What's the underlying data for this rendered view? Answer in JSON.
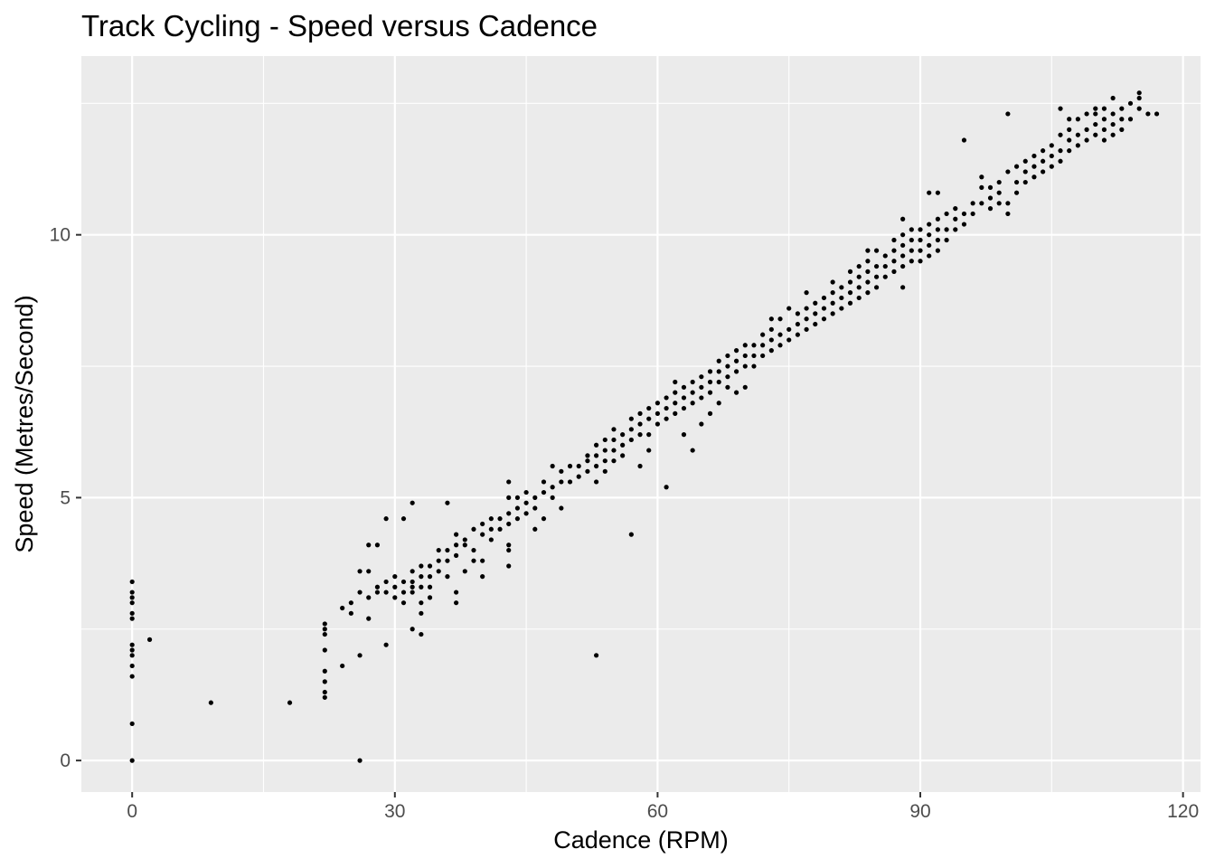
{
  "chart_data": {
    "type": "scatter",
    "title": "Track Cycling - Speed versus Cadence",
    "xlabel": "Cadence (RPM)",
    "ylabel": "Speed (Metres/Second)",
    "xlim": [
      -5.8,
      122
    ],
    "ylim": [
      -0.6,
      13.4
    ],
    "x_ticks": [
      0,
      30,
      60,
      90,
      120
    ],
    "x_tick_labels": [
      "0",
      "30",
      "60",
      "90",
      "120"
    ],
    "y_ticks": [
      0,
      5,
      10
    ],
    "y_tick_labels": [
      "0",
      "5",
      "10"
    ],
    "x_minor_ticks": [
      15,
      45,
      75,
      105
    ],
    "y_minor_ticks": [
      2.5,
      7.5,
      12.5
    ],
    "grid": true,
    "legend": "none",
    "colors": {
      "panel": "#ebebeb",
      "grid": "#ffffff",
      "point": "#000000",
      "tick": "#333333"
    },
    "points": [
      [
        0,
        0
      ],
      [
        0,
        0.7
      ],
      [
        0,
        1.6
      ],
      [
        0,
        1.8
      ],
      [
        0,
        2.0
      ],
      [
        0,
        2.1
      ],
      [
        0,
        2.2
      ],
      [
        0,
        2.7
      ],
      [
        0,
        2.8
      ],
      [
        0,
        3.0
      ],
      [
        0,
        3.1
      ],
      [
        0,
        3.2
      ],
      [
        0,
        3.4
      ],
      [
        2,
        2.3
      ],
      [
        9,
        1.1
      ],
      [
        18,
        1.1
      ],
      [
        22,
        1.2
      ],
      [
        22,
        1.3
      ],
      [
        22,
        1.5
      ],
      [
        22,
        1.7
      ],
      [
        22,
        2.1
      ],
      [
        22,
        2.4
      ],
      [
        22,
        2.5
      ],
      [
        22,
        2.6
      ],
      [
        24,
        1.8
      ],
      [
        24,
        2.9
      ],
      [
        25,
        2.8
      ],
      [
        25,
        3.0
      ],
      [
        26,
        0
      ],
      [
        26,
        2.0
      ],
      [
        26,
        3.2
      ],
      [
        26,
        3.6
      ],
      [
        27,
        2.7
      ],
      [
        27,
        3.1
      ],
      [
        27,
        3.6
      ],
      [
        27,
        4.1
      ],
      [
        28,
        4.1
      ],
      [
        28,
        3.2
      ],
      [
        28,
        3.3
      ],
      [
        29,
        2.2
      ],
      [
        29,
        3.2
      ],
      [
        29,
        3.4
      ],
      [
        29,
        4.6
      ],
      [
        30,
        3.1
      ],
      [
        30,
        3.3
      ],
      [
        30,
        3.5
      ],
      [
        31,
        3.0
      ],
      [
        31,
        3.2
      ],
      [
        31,
        3.4
      ],
      [
        31,
        4.6
      ],
      [
        32,
        2.5
      ],
      [
        32,
        3.2
      ],
      [
        32,
        3.3
      ],
      [
        32,
        3.4
      ],
      [
        32,
        3.6
      ],
      [
        32,
        4.9
      ],
      [
        33,
        2.4
      ],
      [
        33,
        2.8
      ],
      [
        33,
        3.0
      ],
      [
        33,
        3.3
      ],
      [
        33,
        3.5
      ],
      [
        33,
        3.7
      ],
      [
        34,
        3.1
      ],
      [
        34,
        3.3
      ],
      [
        34,
        3.5
      ],
      [
        34,
        3.7
      ],
      [
        35,
        3.6
      ],
      [
        35,
        3.8
      ],
      [
        35,
        4.0
      ],
      [
        36,
        3.5
      ],
      [
        36,
        3.8
      ],
      [
        36,
        4.0
      ],
      [
        36,
        4.9
      ],
      [
        37,
        3.0
      ],
      [
        37,
        3.2
      ],
      [
        37,
        3.9
      ],
      [
        37,
        4.1
      ],
      [
        37,
        4.3
      ],
      [
        38,
        3.6
      ],
      [
        38,
        4.1
      ],
      [
        38,
        4.2
      ],
      [
        39,
        3.8
      ],
      [
        39,
        4.0
      ],
      [
        39,
        4.4
      ],
      [
        40,
        3.5
      ],
      [
        40,
        3.8
      ],
      [
        40,
        4.3
      ],
      [
        40,
        4.5
      ],
      [
        41,
        4.2
      ],
      [
        41,
        4.4
      ],
      [
        41,
        4.6
      ],
      [
        42,
        4.4
      ],
      [
        42,
        4.6
      ],
      [
        43,
        3.7
      ],
      [
        43,
        4.0
      ],
      [
        43,
        4.1
      ],
      [
        43,
        4.5
      ],
      [
        43,
        4.7
      ],
      [
        43,
        5.0
      ],
      [
        43,
        5.3
      ],
      [
        44,
        4.6
      ],
      [
        44,
        4.8
      ],
      [
        44,
        5.0
      ],
      [
        45,
        4.7
      ],
      [
        45,
        4.9
      ],
      [
        45,
        5.1
      ],
      [
        46,
        4.4
      ],
      [
        46,
        4.8
      ],
      [
        46,
        5.0
      ],
      [
        47,
        4.6
      ],
      [
        47,
        5.1
      ],
      [
        47,
        5.3
      ],
      [
        48,
        5.0
      ],
      [
        48,
        5.2
      ],
      [
        48,
        5.6
      ],
      [
        49,
        4.8
      ],
      [
        49,
        5.3
      ],
      [
        49,
        5.5
      ],
      [
        50,
        5.3
      ],
      [
        50,
        5.6
      ],
      [
        51,
        5.4
      ],
      [
        51,
        5.6
      ],
      [
        52,
        5.5
      ],
      [
        52,
        5.7
      ],
      [
        52,
        5.8
      ],
      [
        53,
        2.0
      ],
      [
        53,
        5.3
      ],
      [
        53,
        5.6
      ],
      [
        53,
        5.8
      ],
      [
        53,
        6.0
      ],
      [
        54,
        5.5
      ],
      [
        54,
        5.7
      ],
      [
        54,
        5.9
      ],
      [
        54,
        6.1
      ],
      [
        55,
        5.7
      ],
      [
        55,
        5.9
      ],
      [
        55,
        6.1
      ],
      [
        55,
        6.3
      ],
      [
        56,
        5.8
      ],
      [
        56,
        6.0
      ],
      [
        56,
        6.2
      ],
      [
        57,
        4.3
      ],
      [
        57,
        6.1
      ],
      [
        57,
        6.3
      ],
      [
        57,
        6.5
      ],
      [
        58,
        5.6
      ],
      [
        58,
        6.2
      ],
      [
        58,
        6.4
      ],
      [
        58,
        6.6
      ],
      [
        59,
        5.9
      ],
      [
        59,
        6.2
      ],
      [
        59,
        6.5
      ],
      [
        59,
        6.7
      ],
      [
        60,
        6.4
      ],
      [
        60,
        6.6
      ],
      [
        60,
        6.8
      ],
      [
        61,
        5.2
      ],
      [
        61,
        6.5
      ],
      [
        61,
        6.7
      ],
      [
        61,
        6.9
      ],
      [
        62,
        6.6
      ],
      [
        62,
        6.8
      ],
      [
        62,
        7.0
      ],
      [
        62,
        7.2
      ],
      [
        63,
        6.2
      ],
      [
        63,
        6.7
      ],
      [
        63,
        6.9
      ],
      [
        63,
        7.1
      ],
      [
        64,
        5.9
      ],
      [
        64,
        6.8
      ],
      [
        64,
        7.0
      ],
      [
        64,
        7.2
      ],
      [
        65,
        6.4
      ],
      [
        65,
        6.9
      ],
      [
        65,
        7.1
      ],
      [
        65,
        7.3
      ],
      [
        66,
        6.6
      ],
      [
        66,
        7.0
      ],
      [
        66,
        7.2
      ],
      [
        66,
        7.4
      ],
      [
        67,
        6.8
      ],
      [
        67,
        7.2
      ],
      [
        67,
        7.4
      ],
      [
        67,
        7.6
      ],
      [
        68,
        7.1
      ],
      [
        68,
        7.3
      ],
      [
        68,
        7.5
      ],
      [
        68,
        7.7
      ],
      [
        69,
        7.0
      ],
      [
        69,
        7.4
      ],
      [
        69,
        7.6
      ],
      [
        69,
        7.8
      ],
      [
        70,
        7.1
      ],
      [
        70,
        7.5
      ],
      [
        70,
        7.7
      ],
      [
        70,
        7.9
      ],
      [
        71,
        7.5
      ],
      [
        71,
        7.7
      ],
      [
        71,
        7.9
      ],
      [
        72,
        7.7
      ],
      [
        72,
        7.9
      ],
      [
        72,
        8.1
      ],
      [
        73,
        7.8
      ],
      [
        73,
        8.0
      ],
      [
        73,
        8.2
      ],
      [
        73,
        8.4
      ],
      [
        74,
        7.9
      ],
      [
        74,
        8.1
      ],
      [
        74,
        8.4
      ],
      [
        75,
        8.0
      ],
      [
        75,
        8.2
      ],
      [
        75,
        8.6
      ],
      [
        76,
        8.1
      ],
      [
        76,
        8.3
      ],
      [
        76,
        8.5
      ],
      [
        77,
        8.2
      ],
      [
        77,
        8.4
      ],
      [
        77,
        8.6
      ],
      [
        77,
        8.9
      ],
      [
        78,
        8.3
      ],
      [
        78,
        8.5
      ],
      [
        78,
        8.7
      ],
      [
        79,
        8.4
      ],
      [
        79,
        8.6
      ],
      [
        79,
        8.8
      ],
      [
        80,
        8.5
      ],
      [
        80,
        8.7
      ],
      [
        80,
        8.9
      ],
      [
        80,
        9.1
      ],
      [
        81,
        8.6
      ],
      [
        81,
        8.8
      ],
      [
        81,
        9.0
      ],
      [
        82,
        8.7
      ],
      [
        82,
        8.9
      ],
      [
        82,
        9.1
      ],
      [
        82,
        9.3
      ],
      [
        83,
        8.8
      ],
      [
        83,
        9.0
      ],
      [
        83,
        9.2
      ],
      [
        83,
        9.4
      ],
      [
        84,
        8.9
      ],
      [
        84,
        9.1
      ],
      [
        84,
        9.3
      ],
      [
        84,
        9.5
      ],
      [
        84,
        9.7
      ],
      [
        85,
        9.0
      ],
      [
        85,
        9.2
      ],
      [
        85,
        9.4
      ],
      [
        85,
        9.7
      ],
      [
        86,
        9.2
      ],
      [
        86,
        9.4
      ],
      [
        86,
        9.6
      ],
      [
        87,
        9.3
      ],
      [
        87,
        9.5
      ],
      [
        87,
        9.7
      ],
      [
        87,
        9.9
      ],
      [
        88,
        9.0
      ],
      [
        88,
        9.4
      ],
      [
        88,
        9.6
      ],
      [
        88,
        9.8
      ],
      [
        88,
        10.0
      ],
      [
        88,
        10.3
      ],
      [
        89,
        9.5
      ],
      [
        89,
        9.7
      ],
      [
        89,
        9.9
      ],
      [
        89,
        10.1
      ],
      [
        90,
        9.5
      ],
      [
        90,
        9.7
      ],
      [
        90,
        9.9
      ],
      [
        90,
        10.1
      ],
      [
        91,
        9.6
      ],
      [
        91,
        9.8
      ],
      [
        91,
        10.0
      ],
      [
        91,
        10.2
      ],
      [
        91,
        10.8
      ],
      [
        92,
        9.7
      ],
      [
        92,
        9.9
      ],
      [
        92,
        10.1
      ],
      [
        92,
        10.3
      ],
      [
        92,
        10.8
      ],
      [
        93,
        9.9
      ],
      [
        93,
        10.1
      ],
      [
        93,
        10.4
      ],
      [
        94,
        10.1
      ],
      [
        94,
        10.3
      ],
      [
        94,
        10.5
      ],
      [
        95,
        10.2
      ],
      [
        95,
        10.4
      ],
      [
        95,
        11.8
      ],
      [
        96,
        10.4
      ],
      [
        96,
        10.6
      ],
      [
        97,
        10.6
      ],
      [
        97,
        10.9
      ],
      [
        97,
        11.1
      ],
      [
        98,
        10.5
      ],
      [
        98,
        10.7
      ],
      [
        98,
        10.9
      ],
      [
        99,
        10.6
      ],
      [
        99,
        10.8
      ],
      [
        99,
        11.0
      ],
      [
        100,
        10.4
      ],
      [
        100,
        10.6
      ],
      [
        100,
        11.2
      ],
      [
        100,
        12.3
      ],
      [
        101,
        10.8
      ],
      [
        101,
        11.0
      ],
      [
        101,
        11.3
      ],
      [
        102,
        11.0
      ],
      [
        102,
        11.2
      ],
      [
        102,
        11.4
      ],
      [
        103,
        11.1
      ],
      [
        103,
        11.3
      ],
      [
        103,
        11.5
      ],
      [
        104,
        11.2
      ],
      [
        104,
        11.4
      ],
      [
        104,
        11.6
      ],
      [
        105,
        11.3
      ],
      [
        105,
        11.5
      ],
      [
        105,
        11.7
      ],
      [
        106,
        11.4
      ],
      [
        106,
        11.6
      ],
      [
        106,
        11.9
      ],
      [
        106,
        12.4
      ],
      [
        107,
        11.6
      ],
      [
        107,
        11.8
      ],
      [
        107,
        12.0
      ],
      [
        107,
        12.2
      ],
      [
        108,
        11.7
      ],
      [
        108,
        11.9
      ],
      [
        108,
        12.2
      ],
      [
        109,
        11.8
      ],
      [
        109,
        12.0
      ],
      [
        109,
        12.3
      ],
      [
        110,
        11.9
      ],
      [
        110,
        12.1
      ],
      [
        110,
        12.3
      ],
      [
        110,
        12.4
      ],
      [
        111,
        11.8
      ],
      [
        111,
        12.0
      ],
      [
        111,
        12.2
      ],
      [
        111,
        12.4
      ],
      [
        112,
        11.9
      ],
      [
        112,
        12.1
      ],
      [
        112,
        12.3
      ],
      [
        112,
        12.6
      ],
      [
        113,
        12.0
      ],
      [
        113,
        12.2
      ],
      [
        113,
        12.4
      ],
      [
        114,
        12.2
      ],
      [
        114,
        12.5
      ],
      [
        115,
        12.4
      ],
      [
        115,
        12.6
      ],
      [
        115,
        12.7
      ],
      [
        116,
        12.3
      ],
      [
        117,
        12.3
      ]
    ]
  }
}
